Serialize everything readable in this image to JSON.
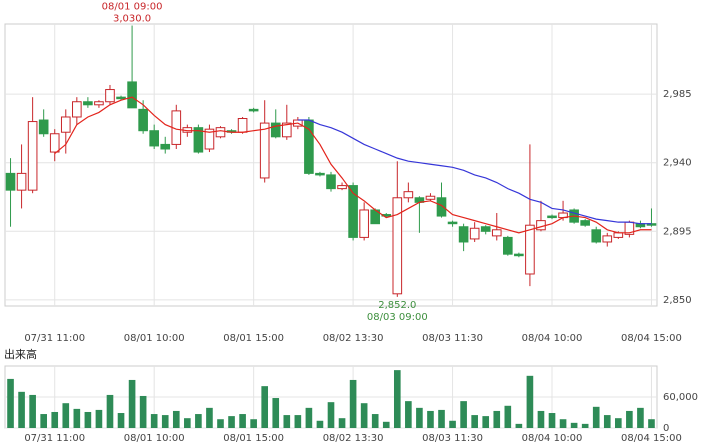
{
  "chart_data": [
    {
      "type": "candlestick",
      "xticks": [
        {
          "value": 4,
          "label": "07/31 11:00"
        },
        {
          "value": 13,
          "label": "08/01 10:00"
        },
        {
          "value": 22,
          "label": "08/01 15:00"
        },
        {
          "value": 31,
          "label": "08/02 13:30"
        },
        {
          "value": 40,
          "label": "08/03 11:30"
        },
        {
          "value": 49,
          "label": "08/04 10:00"
        },
        {
          "value": 58,
          "label": "08/04 15:00"
        }
      ],
      "ylim": [
        2846,
        3031
      ],
      "yticks": [
        {
          "value": 2850,
          "label": "2,850"
        },
        {
          "value": 2895,
          "label": "2,895"
        },
        {
          "value": 2940,
          "label": "2,940"
        },
        {
          "value": 2985,
          "label": "2,985"
        }
      ],
      "grid": true,
      "up_color": "#c8262a",
      "down_color": "#2f9a4c",
      "open": [
        2933,
        2922,
        2922,
        2968,
        2947,
        2960,
        2970,
        2980,
        2978,
        2980,
        2983,
        2993,
        2975,
        2961,
        2952,
        2952,
        2960,
        2963,
        2949,
        2957,
        2961,
        2960,
        2975,
        2930,
        2966,
        2957,
        2964,
        2968,
        2933,
        2932,
        2923,
        2925,
        2891,
        2909,
        2906,
        2854,
        2917,
        2917,
        2916,
        2917,
        2901,
        2898,
        2890,
        2898,
        2892,
        2891,
        2880,
        2867,
        2896,
        2905,
        2904,
        2909,
        2902,
        2896,
        2888,
        2891,
        2893,
        2900,
        2900
      ],
      "high": [
        2943,
        2952,
        2983,
        2975,
        2962,
        2975,
        2983,
        2983,
        2981,
        2991,
        2984,
        3030,
        2981,
        2965,
        2957,
        2978,
        2965,
        2965,
        2965,
        2964,
        2962,
        2970,
        2976,
        2981,
        2975,
        2978,
        2970,
        2970,
        2934,
        2934,
        2927,
        2927,
        2914,
        2910,
        2907,
        2941,
        2927,
        2918,
        2920,
        2927,
        2902,
        2900,
        2901,
        2899,
        2907,
        2892,
        2881,
        2952,
        2915,
        2906,
        2915,
        2910,
        2903,
        2898,
        2894,
        2895,
        2902,
        2902,
        2910
      ],
      "low": [
        2898,
        2910,
        2920,
        2957,
        2941,
        2946,
        2965,
        2976,
        2976,
        2978,
        2981,
        2976,
        2959,
        2949,
        2946,
        2949,
        2957,
        2946,
        2947,
        2956,
        2959,
        2959,
        2973,
        2927,
        2956,
        2955,
        2962,
        2932,
        2931,
        2921,
        2922,
        2889,
        2889,
        2900,
        2904,
        2852,
        2914,
        2894,
        2915,
        2904,
        2898,
        2882,
        2888,
        2893,
        2889,
        2879,
        2878,
        2859,
        2895,
        2903,
        2902,
        2900,
        2898,
        2887,
        2885,
        2890,
        2891,
        2897,
        2898
      ],
      "close": [
        2922,
        2933,
        2967,
        2959,
        2959,
        2970,
        2980,
        2978,
        2980,
        2988,
        2982,
        2976,
        2961,
        2951,
        2949,
        2974,
        2963,
        2947,
        2962,
        2963,
        2960,
        2969,
        2974,
        2966,
        2957,
        2966,
        2968,
        2933,
        2932,
        2923,
        2925,
        2891,
        2909,
        2900,
        2905,
        2917,
        2921,
        2914,
        2918,
        2905,
        2900,
        2888,
        2897,
        2895,
        2896,
        2880,
        2879,
        2899,
        2902,
        2904,
        2907,
        2901,
        2899,
        2888,
        2892,
        2894,
        2901,
        2898,
        2899
      ],
      "series": [
        {
          "color": "#e3241c",
          "values": [
            null,
            null,
            null,
            null,
            2946,
            2952,
            2965,
            2970,
            2973,
            2978,
            2981,
            2983,
            2978,
            2971,
            2965,
            2962,
            2961,
            2961,
            2960,
            2961,
            2960,
            2960,
            2961,
            2962,
            2964,
            2965,
            2966,
            2962,
            2952,
            2939,
            2930,
            2920,
            2915,
            2909,
            2904,
            2906,
            2910,
            2914,
            2915,
            2912,
            2906,
            2904,
            2902,
            2900,
            2898,
            2896,
            2894,
            2896,
            2898,
            2900,
            2904,
            2905,
            2904,
            2901,
            2896,
            2894,
            2894,
            2896,
            2896
          ]
        },
        {
          "color": "#3636d8",
          "values": [
            null,
            null,
            null,
            null,
            null,
            null,
            null,
            null,
            null,
            null,
            null,
            null,
            null,
            null,
            null,
            null,
            null,
            null,
            null,
            null,
            null,
            null,
            null,
            null,
            null,
            null,
            2968,
            2968,
            2965,
            2963,
            2960,
            2956,
            2952,
            2949,
            2946,
            2943,
            2941,
            2940,
            2939,
            2938,
            2937,
            2935,
            2932,
            2930,
            2927,
            2923,
            2920,
            2916,
            2914,
            2910,
            2909,
            2907,
            2905,
            2903,
            2902,
            2901,
            2901,
            2900,
            2900
          ]
        }
      ],
      "high_label": {
        "time": "08/01 09:00",
        "value": "3,030.0"
      },
      "low_label": {
        "value": "2,852.0",
        "time": "08/03 09:00"
      }
    },
    {
      "type": "bar",
      "title": "出来高",
      "color": "#2e8b57",
      "values": [
        95000,
        70000,
        64000,
        27000,
        31000,
        48000,
        37000,
        31000,
        35000,
        64000,
        29000,
        93000,
        62000,
        27000,
        25000,
        33000,
        19000,
        27000,
        39000,
        17000,
        23000,
        27000,
        17000,
        81000,
        58000,
        25000,
        25000,
        39000,
        14000,
        50000,
        19000,
        93000,
        48000,
        27000,
        12000,
        112000,
        52000,
        39000,
        33000,
        35000,
        14000,
        52000,
        25000,
        23000,
        33000,
        43000,
        8000,
        101000,
        33000,
        29000,
        17000,
        10000,
        8000,
        41000,
        25000,
        19000,
        33000,
        39000,
        17000
      ],
      "xticks": [
        {
          "value": 4,
          "label": "07/31 11:00"
        },
        {
          "value": 13,
          "label": "08/01 10:00"
        },
        {
          "value": 22,
          "label": "08/01 15:00"
        },
        {
          "value": 31,
          "label": "08/02 13:30"
        },
        {
          "value": 40,
          "label": "08/03 11:30"
        },
        {
          "value": 49,
          "label": "08/04 10:00"
        },
        {
          "value": 58,
          "label": "08/04 15:00"
        }
      ],
      "ylim": [
        0,
        120000
      ],
      "yticks": [
        0,
        {
          "value": 60000,
          "label": "60,000"
        }
      ],
      "grid": true
    }
  ]
}
